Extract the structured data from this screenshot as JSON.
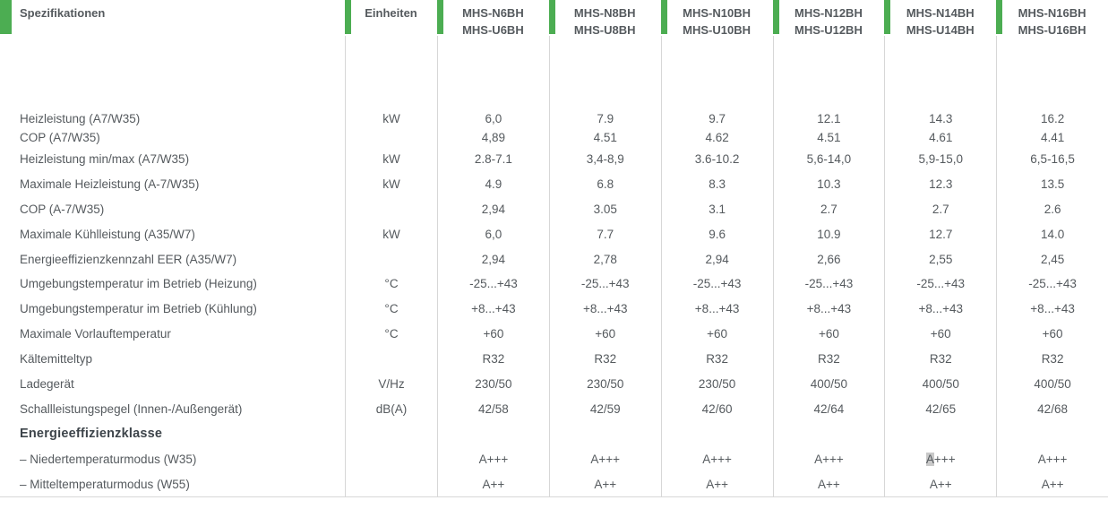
{
  "colors": {
    "accent_green": "#4CAD52",
    "divider": "#D7D7D7",
    "text": "#555A5E",
    "selection_bg": "#C9C9C9"
  },
  "header": {
    "spec_label": "Spezifikationen",
    "units_label": "Einheiten",
    "models": [
      {
        "line1": "MHS-N6BH",
        "line2": "MHS-U6BH"
      },
      {
        "line1": "MHS-N8BH",
        "line2": "MHS-U8BH"
      },
      {
        "line1": "MHS-N10BH",
        "line2": "MHS-U10BH"
      },
      {
        "line1": "MHS-N12BH",
        "line2": "MHS-U12BH"
      },
      {
        "line1": "MHS-N14BH",
        "line2": "MHS-U14BH"
      },
      {
        "line1": "MHS-N16BH",
        "line2": "MHS-U16BH"
      }
    ]
  },
  "rows": [
    {
      "label": "Heizleistung (A7/W35)",
      "unit": "kW",
      "values": [
        "6,0",
        "7.9",
        "9.7",
        "12.1",
        "14.3",
        "16.2"
      ]
    },
    {
      "label": "COP (A7/W35)",
      "unit": "",
      "values": [
        "4,89",
        "4.51",
        "4.62",
        "4.51",
        "4.61",
        "4.41"
      ]
    },
    {
      "label": "Heizleistung min/max (A7/W35)",
      "unit": "kW",
      "values": [
        "2.8-7.1",
        "3,4-8,9",
        "3.6-10.2",
        "5,6-14,0",
        "5,9-15,0",
        "6,5-16,5"
      ]
    },
    {
      "label": "Maximale Heizleistung (A-7/W35)",
      "unit": "kW",
      "values": [
        "4.9",
        "6.8",
        "8.3",
        "10.3",
        "12.3",
        "13.5"
      ]
    },
    {
      "label": "COP (A-7/W35)",
      "unit": "",
      "values": [
        "2,94",
        "3.05",
        "3.1",
        "2.7",
        "2.7",
        "2.6"
      ]
    },
    {
      "label": "Maximale Kühlleistung (A35/W7)",
      "unit": "kW",
      "values": [
        "6,0",
        "7.7",
        "9.6",
        "10.9",
        "12.7",
        "14.0"
      ]
    },
    {
      "label": "Energieeffizienzkennzahl EER (A35/W7)",
      "unit": "",
      "values": [
        "2,94",
        "2,78",
        "2,94",
        "2,66",
        "2,55",
        "2,45"
      ]
    },
    {
      "label": "Umgebungstemperatur im Betrieb (Heizung)",
      "unit": "°C",
      "values": [
        "-25...+43",
        "-25...+43",
        "-25...+43",
        "-25...+43",
        "-25...+43",
        "-25...+43"
      ]
    },
    {
      "label": "Umgebungstemperatur im Betrieb (Kühlung)",
      "unit": "°C",
      "values": [
        "+8...+43",
        "+8...+43",
        "+8...+43",
        "+8...+43",
        "+8...+43",
        "+8...+43"
      ]
    },
    {
      "label": "Maximale Vorlauftemperatur",
      "unit": "°C",
      "values": [
        "+60",
        "+60",
        "+60",
        "+60",
        "+60",
        "+60"
      ]
    },
    {
      "label": "Kältemitteltyp",
      "unit": "",
      "values": [
        "R32",
        "R32",
        "R32",
        "R32",
        "R32",
        "R32"
      ]
    },
    {
      "label": "Ladegerät",
      "unit": "V/Hz",
      "values": [
        "230/50",
        "230/50",
        "230/50",
        "400/50",
        "400/50",
        "400/50"
      ]
    },
    {
      "label": "Schallleistungspegel (Innen-/Außengerät)",
      "unit": "dB(A)",
      "values": [
        "42/58",
        "42/59",
        "42/60",
        "42/64",
        "42/65",
        "42/68"
      ]
    },
    {
      "label": "Energieeffizienzklasse",
      "unit": "",
      "values": [
        "",
        "",
        "",
        "",
        "",
        ""
      ],
      "bold": true
    },
    {
      "label": "– Niedertemperaturmodus (W35)",
      "unit": "",
      "values": [
        "A+++",
        "A+++",
        "A+++",
        "A+++",
        "A+++",
        "A+++"
      ]
    },
    {
      "label": "– Mitteltemperaturmodus (W55)",
      "unit": "",
      "values": [
        "A++",
        "A++",
        "A++",
        "A++",
        "A++",
        "A++"
      ]
    }
  ],
  "selection_highlight": {
    "row": 14,
    "col": 4,
    "chars": 1
  }
}
